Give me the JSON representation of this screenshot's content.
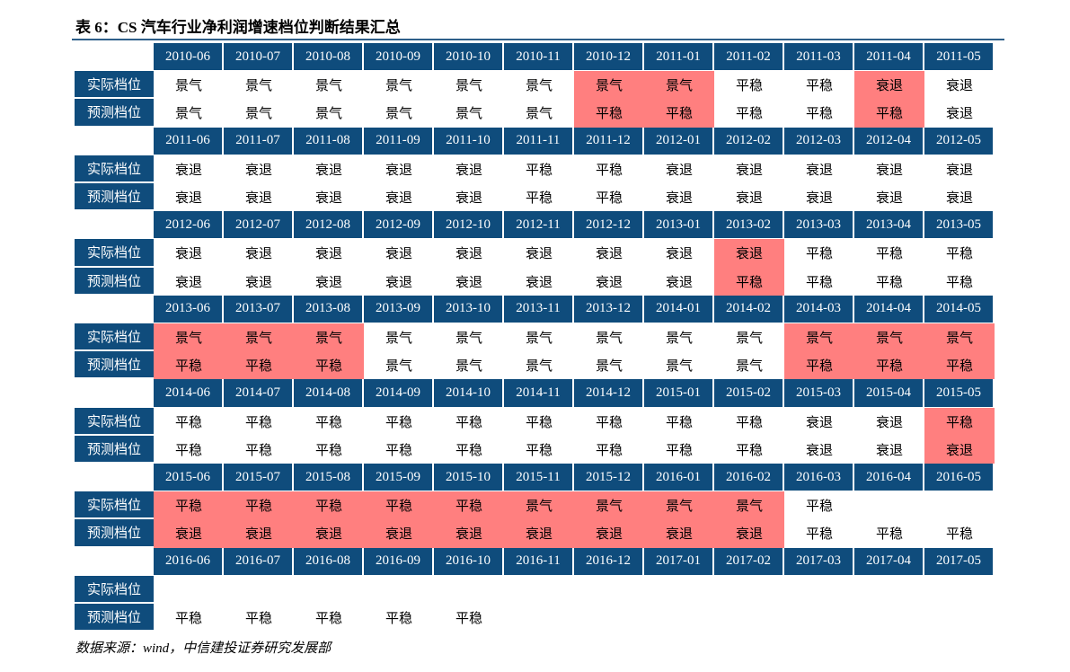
{
  "title": "表 6：CS 汽车行业净利润增速档位判断结果汇总",
  "row_labels": [
    "实际档位",
    "预测档位"
  ],
  "blocks": [
    {
      "dates": [
        "2010-06",
        "2010-07",
        "2010-08",
        "2010-09",
        "2010-10",
        "2010-11",
        "2010-12",
        "2011-01",
        "2011-02",
        "2011-03",
        "2011-04",
        "2011-05"
      ],
      "actual": [
        "景气",
        "景气",
        "景气",
        "景气",
        "景气",
        "景气",
        "景气",
        "景气",
        "平稳",
        "平稳",
        "衰退",
        "衰退"
      ],
      "predicted": [
        "景气",
        "景气",
        "景气",
        "景气",
        "景气",
        "景气",
        "平稳",
        "平稳",
        "平稳",
        "平稳",
        "平稳",
        "衰退"
      ]
    },
    {
      "dates": [
        "2011-06",
        "2011-07",
        "2011-08",
        "2011-09",
        "2011-10",
        "2011-11",
        "2011-12",
        "2012-01",
        "2012-02",
        "2012-03",
        "2012-04",
        "2012-05"
      ],
      "actual": [
        "衰退",
        "衰退",
        "衰退",
        "衰退",
        "衰退",
        "平稳",
        "平稳",
        "衰退",
        "衰退",
        "衰退",
        "衰退",
        "衰退"
      ],
      "predicted": [
        "衰退",
        "衰退",
        "衰退",
        "衰退",
        "衰退",
        "平稳",
        "平稳",
        "衰退",
        "衰退",
        "衰退",
        "衰退",
        "衰退"
      ]
    },
    {
      "dates": [
        "2012-06",
        "2012-07",
        "2012-08",
        "2012-09",
        "2012-10",
        "2012-11",
        "2012-12",
        "2013-01",
        "2013-02",
        "2013-03",
        "2013-04",
        "2013-05"
      ],
      "actual": [
        "衰退",
        "衰退",
        "衰退",
        "衰退",
        "衰退",
        "衰退",
        "衰退",
        "衰退",
        "衰退",
        "平稳",
        "平稳",
        "平稳"
      ],
      "predicted": [
        "衰退",
        "衰退",
        "衰退",
        "衰退",
        "衰退",
        "衰退",
        "衰退",
        "衰退",
        "平稳",
        "平稳",
        "平稳",
        "平稳"
      ]
    },
    {
      "dates": [
        "2013-06",
        "2013-07",
        "2013-08",
        "2013-09",
        "2013-10",
        "2013-11",
        "2013-12",
        "2014-01",
        "2014-02",
        "2014-03",
        "2014-04",
        "2014-05"
      ],
      "actual": [
        "景气",
        "景气",
        "景气",
        "景气",
        "景气",
        "景气",
        "景气",
        "景气",
        "景气",
        "景气",
        "景气",
        "景气"
      ],
      "predicted": [
        "平稳",
        "平稳",
        "平稳",
        "景气",
        "景气",
        "景气",
        "景气",
        "景气",
        "景气",
        "平稳",
        "平稳",
        "平稳"
      ]
    },
    {
      "dates": [
        "2014-06",
        "2014-07",
        "2014-08",
        "2014-09",
        "2014-10",
        "2014-11",
        "2014-12",
        "2015-01",
        "2015-02",
        "2015-03",
        "2015-04",
        "2015-05"
      ],
      "actual": [
        "平稳",
        "平稳",
        "平稳",
        "平稳",
        "平稳",
        "平稳",
        "平稳",
        "平稳",
        "平稳",
        "衰退",
        "衰退",
        "平稳"
      ],
      "predicted": [
        "平稳",
        "平稳",
        "平稳",
        "平稳",
        "平稳",
        "平稳",
        "平稳",
        "平稳",
        "平稳",
        "衰退",
        "衰退",
        "衰退"
      ]
    },
    {
      "dates": [
        "2015-06",
        "2015-07",
        "2015-08",
        "2015-09",
        "2015-10",
        "2015-11",
        "2015-12",
        "2016-01",
        "2016-02",
        "2016-03",
        "2016-04",
        "2016-05"
      ],
      "actual": [
        "平稳",
        "平稳",
        "平稳",
        "平稳",
        "平稳",
        "景气",
        "景气",
        "景气",
        "景气",
        "平稳",
        null,
        null
      ],
      "predicted": [
        "衰退",
        "衰退",
        "衰退",
        "衰退",
        "衰退",
        "衰退",
        "衰退",
        "衰退",
        "衰退",
        "平稳",
        "平稳",
        "平稳"
      ]
    },
    {
      "dates": [
        "2016-06",
        "2016-07",
        "2016-08",
        "2016-09",
        "2016-10",
        "2016-11",
        "2016-12",
        "2017-01",
        "2017-02",
        "2017-03",
        "2017-04",
        "2017-05"
      ],
      "actual": [
        null,
        null,
        null,
        null,
        null,
        null,
        null,
        null,
        null,
        null,
        null,
        null
      ],
      "predicted": [
        "平稳",
        "平稳",
        "平稳",
        "平稳",
        "平稳",
        null,
        null,
        null,
        null,
        null,
        null,
        null
      ]
    }
  ],
  "source": "数据来源：wind，中信建投证券研究发展部"
}
